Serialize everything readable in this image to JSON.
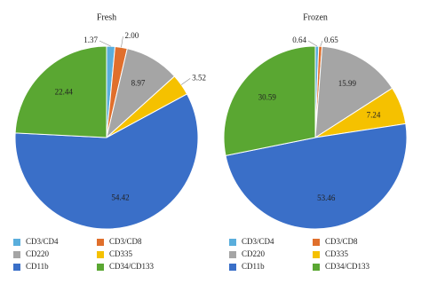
{
  "chart_data": [
    {
      "type": "pie",
      "title": "Fresh",
      "categories": [
        "CD3/CD4",
        "CD3/CD8",
        "CD220",
        "CD335",
        "CD11b",
        "CD34/CD133"
      ],
      "values": [
        1.37,
        2.0,
        8.97,
        3.52,
        54.42,
        22.44
      ],
      "value_labels": [
        "1.37",
        "2.00",
        "8.97",
        "3.52",
        "54.42",
        "22.44"
      ],
      "colors": [
        "#5aaedc",
        "#e06f2c",
        "#a5a5a5",
        "#f5c100",
        "#3a6fc8",
        "#5aa732"
      ]
    },
    {
      "type": "pie",
      "title": "Frozen",
      "categories": [
        "CD3/CD4",
        "CD3/CD8",
        "CD220",
        "CD335",
        "CD11b",
        "CD34/CD133"
      ],
      "values": [
        0.64,
        0.65,
        15.99,
        7.24,
        53.46,
        30.59
      ],
      "value_labels": [
        "0.64",
        "0.65",
        "15.99",
        "7.24",
        "53.46",
        "30.59"
      ],
      "colors": [
        "#5aaedc",
        "#e06f2c",
        "#a5a5a5",
        "#f5c100",
        "#3a6fc8",
        "#5aa732"
      ]
    }
  ]
}
